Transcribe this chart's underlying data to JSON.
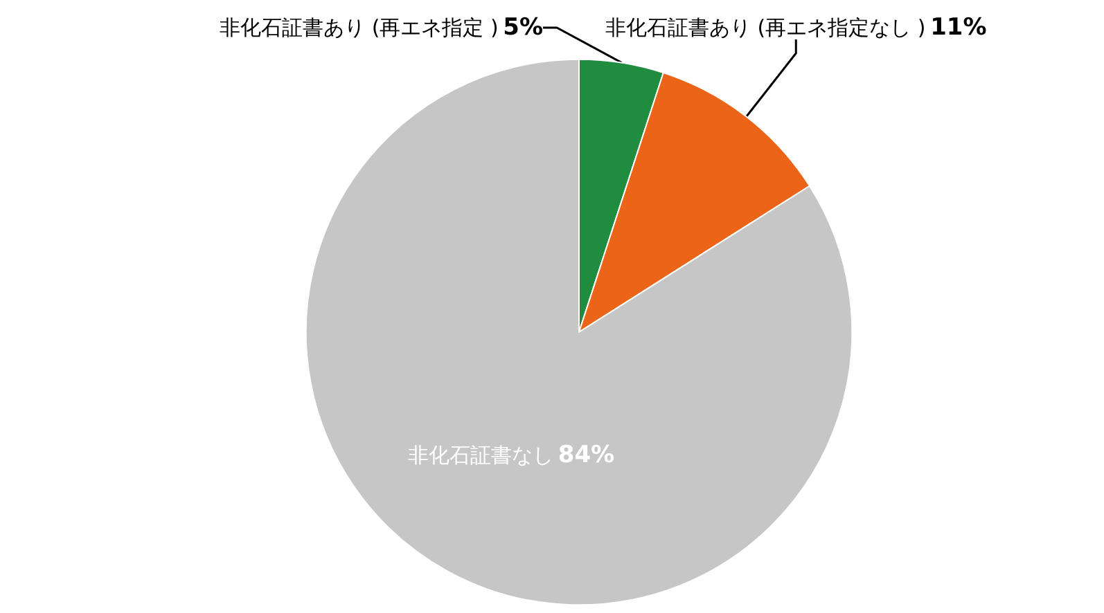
{
  "chart_data": {
    "type": "pie",
    "categories": [
      "非化石証書あり (再エネ指定 )",
      "非化石証書あり (再エネ指定なし )",
      "非化石証書なし"
    ],
    "values": [
      5,
      11,
      84
    ],
    "colors": [
      "#1f8c3f",
      "#ec6417",
      "#c6c6c6"
    ],
    "value_labels": [
      "5%",
      "11%",
      "84%"
    ]
  }
}
